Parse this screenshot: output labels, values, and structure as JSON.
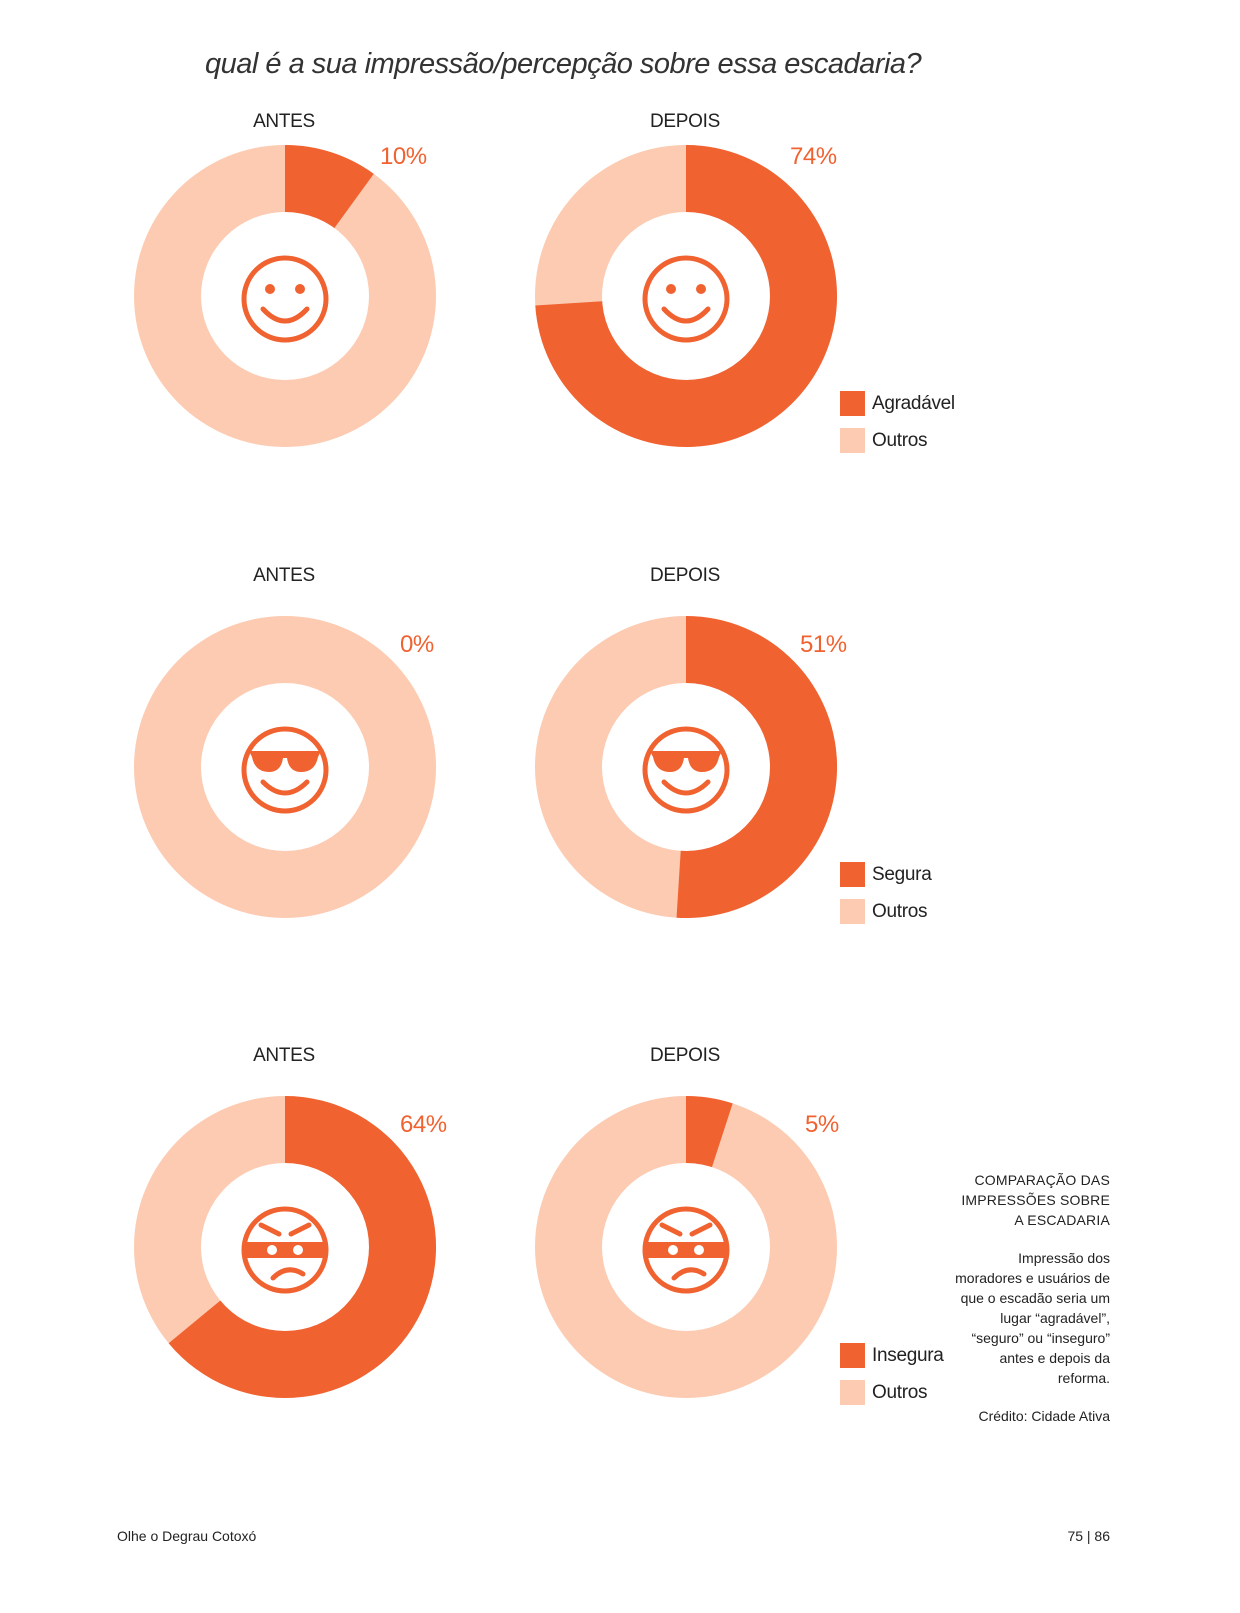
{
  "title": "qual é a sua impressão/percepção sobre essa escadaria?",
  "colors": {
    "accent": "#f06230",
    "light": "#fccbb1",
    "icon": "#f06230"
  },
  "chart_data": [
    {
      "type": "pie",
      "group": "Agradável",
      "label": "ANTES",
      "value": 10,
      "pct_label": "10%",
      "icon": "smiley-icon"
    },
    {
      "type": "pie",
      "group": "Agradável",
      "label": "DEPOIS",
      "value": 74,
      "pct_label": "74%",
      "icon": "smiley-icon"
    },
    {
      "type": "pie",
      "group": "Segura",
      "label": "ANTES",
      "value": 0,
      "pct_label": "0%",
      "icon": "sunglasses-face-icon"
    },
    {
      "type": "pie",
      "group": "Segura",
      "label": "DEPOIS",
      "value": 51,
      "pct_label": "51%",
      "icon": "sunglasses-face-icon"
    },
    {
      "type": "pie",
      "group": "Insegura",
      "label": "ANTES",
      "value": 64,
      "pct_label": "64%",
      "icon": "bandit-face-icon"
    },
    {
      "type": "pie",
      "group": "Insegura",
      "label": "DEPOIS",
      "value": 5,
      "pct_label": "5%",
      "icon": "bandit-face-icon"
    }
  ],
  "legends": [
    {
      "primary": "Agradável",
      "secondary": "Outros"
    },
    {
      "primary": "Segura",
      "secondary": "Outros"
    },
    {
      "primary": "Insegura",
      "secondary": "Outros"
    }
  ],
  "caption": {
    "heading": "COMPARAÇÃO DAS IMPRESSÕES SOBRE A ESCADARIA",
    "body": "Impressão dos moradores e usuários de que o escadão seria um lugar “agradável”, “seguro” ou “inseguro” antes e depois da reforma.",
    "credit": "Crédito: Cidade Ativa"
  },
  "footer": {
    "left": "Olhe o Degrau Cotoxó",
    "right": "75 | 86"
  }
}
